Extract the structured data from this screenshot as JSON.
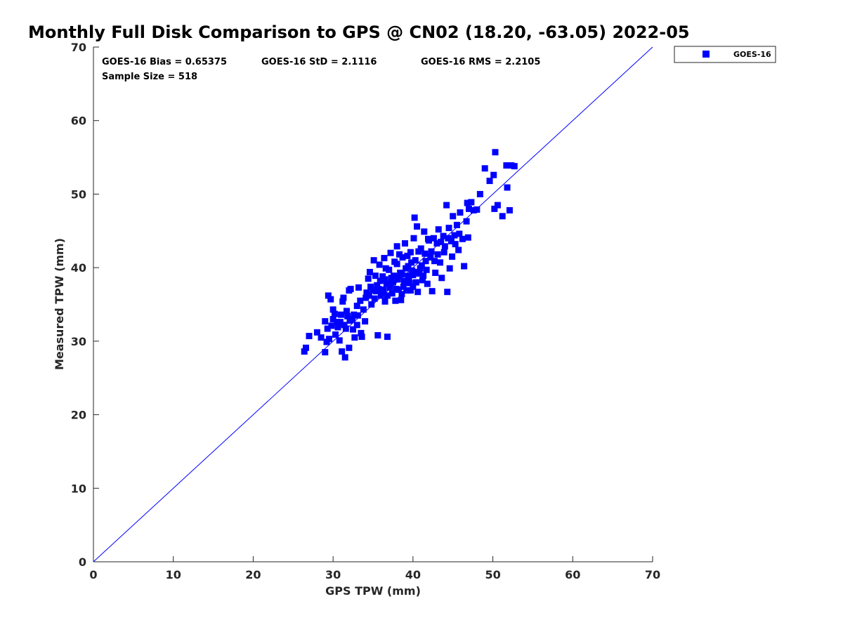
{
  "chart_data": {
    "type": "scatter",
    "title": "Monthly Full Disk Comparison to GPS @ CN02 (18.20, -63.05) 2022-05",
    "xlabel": "GPS TPW (mm)",
    "ylabel": "Measured TPW (mm)",
    "xlim": [
      0,
      70
    ],
    "ylim": [
      0,
      70
    ],
    "xticks": [
      "0",
      "10",
      "20",
      "30",
      "40",
      "50",
      "60",
      "70"
    ],
    "yticks": [
      "0",
      "10",
      "20",
      "30",
      "40",
      "50",
      "60",
      "70"
    ],
    "grid": false,
    "legend_position": "outside top-right",
    "stats": {
      "bias": "GOES-16 Bias = 0.65375",
      "std": "GOES-16 StD = 2.1116",
      "rms": "GOES-16 RMS = 2.2105",
      "sample_size": "Sample Size = 518"
    },
    "reference_line": {
      "type": "one-to-one",
      "from": [
        0,
        0
      ],
      "to": [
        70,
        70
      ],
      "color": "#0000ff"
    },
    "series": [
      {
        "name": "GOES-16",
        "color": "#0000ff",
        "marker": "square",
        "points": [
          [
            26.4,
            28.6
          ],
          [
            26.6,
            29.1
          ],
          [
            27.0,
            30.7
          ],
          [
            28.0,
            31.2
          ],
          [
            28.5,
            30.5
          ],
          [
            29.0,
            28.5
          ],
          [
            29.0,
            32.7
          ],
          [
            29.2,
            29.9
          ],
          [
            29.5,
            30.3
          ],
          [
            29.4,
            36.2
          ],
          [
            29.7,
            35.7
          ],
          [
            30.0,
            33.0
          ],
          [
            30.0,
            34.3
          ],
          [
            30.3,
            30.9
          ],
          [
            30.5,
            32.6
          ],
          [
            30.8,
            30.1
          ],
          [
            31.0,
            33.6
          ],
          [
            31.1,
            28.6
          ],
          [
            31.2,
            35.4
          ],
          [
            31.3,
            35.9
          ],
          [
            31.5,
            27.8
          ],
          [
            31.6,
            31.7
          ],
          [
            31.8,
            33.4
          ],
          [
            32.0,
            29.1
          ],
          [
            32.0,
            36.9
          ],
          [
            32.2,
            37.1
          ],
          [
            32.4,
            33.0
          ],
          [
            32.5,
            31.6
          ],
          [
            32.7,
            30.5
          ],
          [
            33.0,
            32.2
          ],
          [
            33.0,
            34.8
          ],
          [
            33.2,
            37.3
          ],
          [
            33.5,
            31.1
          ],
          [
            33.6,
            30.6
          ],
          [
            33.8,
            34.3
          ],
          [
            34.0,
            32.7
          ],
          [
            34.2,
            36.6
          ],
          [
            34.4,
            38.5
          ],
          [
            34.5,
            36.2
          ],
          [
            34.6,
            39.4
          ],
          [
            34.8,
            35.0
          ],
          [
            35.0,
            36.9
          ],
          [
            35.1,
            41.0
          ],
          [
            35.3,
            38.9
          ],
          [
            35.5,
            37.6
          ],
          [
            35.6,
            30.8
          ],
          [
            35.8,
            40.4
          ],
          [
            36.0,
            36.2
          ],
          [
            36.2,
            38.8
          ],
          [
            36.4,
            41.3
          ],
          [
            36.5,
            35.4
          ],
          [
            36.7,
            37.8
          ],
          [
            36.8,
            30.6
          ],
          [
            37.0,
            39.7
          ],
          [
            37.2,
            42.0
          ],
          [
            37.4,
            36.5
          ],
          [
            37.6,
            38.9
          ],
          [
            37.8,
            35.5
          ],
          [
            38.0,
            40.5
          ],
          [
            38.0,
            42.9
          ],
          [
            38.2,
            37.0
          ],
          [
            38.4,
            39.3
          ],
          [
            38.5,
            35.6
          ],
          [
            38.7,
            41.4
          ],
          [
            38.9,
            38.0
          ],
          [
            39.0,
            43.3
          ],
          [
            39.2,
            36.9
          ],
          [
            39.4,
            40.2
          ],
          [
            39.5,
            38.5
          ],
          [
            39.7,
            42.1
          ],
          [
            39.9,
            39.6
          ],
          [
            40.0,
            37.4
          ],
          [
            40.1,
            44.0
          ],
          [
            40.2,
            46.8
          ],
          [
            40.3,
            41.0
          ],
          [
            40.5,
            45.6
          ],
          [
            40.6,
            36.7
          ],
          [
            40.8,
            39.2
          ],
          [
            41.0,
            42.6
          ],
          [
            41.2,
            38.3
          ],
          [
            41.4,
            44.9
          ],
          [
            41.6,
            40.9
          ],
          [
            41.8,
            37.8
          ],
          [
            42.0,
            43.7
          ],
          [
            42.2,
            41.4
          ],
          [
            42.4,
            36.8
          ],
          [
            42.6,
            44.0
          ],
          [
            42.8,
            39.3
          ],
          [
            43.0,
            43.3
          ],
          [
            43.2,
            45.2
          ],
          [
            43.4,
            40.7
          ],
          [
            43.6,
            38.6
          ],
          [
            43.8,
            44.3
          ],
          [
            44.0,
            42.9
          ],
          [
            44.2,
            48.5
          ],
          [
            44.3,
            36.7
          ],
          [
            44.5,
            45.4
          ],
          [
            44.6,
            39.9
          ],
          [
            44.8,
            43.6
          ],
          [
            45.0,
            47.0
          ],
          [
            45.2,
            44.4
          ],
          [
            45.5,
            45.8
          ],
          [
            45.7,
            42.4
          ],
          [
            45.9,
            47.5
          ],
          [
            46.2,
            43.9
          ],
          [
            46.4,
            40.2
          ],
          [
            46.7,
            46.3
          ],
          [
            46.9,
            44.1
          ],
          [
            46.8,
            48.8
          ],
          [
            47.0,
            48.0
          ],
          [
            47.3,
            48.9
          ],
          [
            47.6,
            47.8
          ],
          [
            48.0,
            47.9
          ],
          [
            48.4,
            50.0
          ],
          [
            49.0,
            53.5
          ],
          [
            49.6,
            51.8
          ],
          [
            50.1,
            52.6
          ],
          [
            50.2,
            48.0
          ],
          [
            50.3,
            55.7
          ],
          [
            50.6,
            48.5
          ],
          [
            51.2,
            47.0
          ],
          [
            51.7,
            53.9
          ],
          [
            51.8,
            50.9
          ],
          [
            52.1,
            47.8
          ],
          [
            52.3,
            53.9
          ],
          [
            52.7,
            53.8
          ],
          [
            29.3,
            31.7
          ],
          [
            29.8,
            32.1
          ],
          [
            30.2,
            33.7
          ],
          [
            30.6,
            31.9
          ],
          [
            30.9,
            32.6
          ],
          [
            31.4,
            32.2
          ],
          [
            31.7,
            34.1
          ],
          [
            32.1,
            32.8
          ],
          [
            32.6,
            33.6
          ],
          [
            33.1,
            33.5
          ],
          [
            33.4,
            35.5
          ],
          [
            34.1,
            35.9
          ],
          [
            34.7,
            37.4
          ],
          [
            35.4,
            36.8
          ],
          [
            35.9,
            38.2
          ],
          [
            36.3,
            37.0
          ],
          [
            36.6,
            39.9
          ],
          [
            36.9,
            37.8
          ],
          [
            37.3,
            38.6
          ],
          [
            37.7,
            40.8
          ],
          [
            38.1,
            38.4
          ],
          [
            38.3,
            41.8
          ],
          [
            38.6,
            39.1
          ],
          [
            38.8,
            37.4
          ],
          [
            39.1,
            39.9
          ],
          [
            39.3,
            41.6
          ],
          [
            39.6,
            37.9
          ],
          [
            39.8,
            40.7
          ],
          [
            40.4,
            39.4
          ],
          [
            40.7,
            42.2
          ],
          [
            41.1,
            40.3
          ],
          [
            41.5,
            41.9
          ],
          [
            41.9,
            43.9
          ],
          [
            42.3,
            42.2
          ],
          [
            42.7,
            40.9
          ],
          [
            43.1,
            41.8
          ],
          [
            43.5,
            43.5
          ],
          [
            43.9,
            42.1
          ],
          [
            44.4,
            44.0
          ],
          [
            44.9,
            41.5
          ],
          [
            45.3,
            43.2
          ],
          [
            45.8,
            44.6
          ],
          [
            35.2,
            35.8
          ],
          [
            35.7,
            37.1
          ],
          [
            36.1,
            36.6
          ],
          [
            36.5,
            38.4
          ],
          [
            36.8,
            36.2
          ],
          [
            37.1,
            37.3
          ],
          [
            37.5,
            38.0
          ],
          [
            37.9,
            37.1
          ],
          [
            38.2,
            38.8
          ],
          [
            38.6,
            36.4
          ],
          [
            39.0,
            38.2
          ],
          [
            39.4,
            38.9
          ],
          [
            39.7,
            36.9
          ],
          [
            40.0,
            39.0
          ],
          [
            40.4,
            38.0
          ],
          [
            40.9,
            39.9
          ],
          [
            41.3,
            38.9
          ],
          [
            41.7,
            39.7
          ]
        ]
      }
    ]
  }
}
